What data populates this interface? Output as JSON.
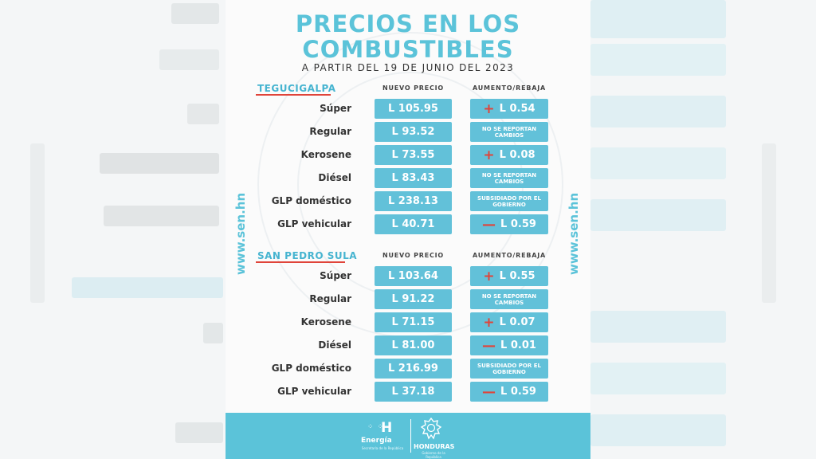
{
  "header": {
    "title_line1": "PRECIOS EN LOS",
    "title_line2": "COMBUSTIBLES",
    "subtitle": "A PARTIR DEL 19 DE JUNIO DEL 2023"
  },
  "side_url": "www.sen.hn",
  "columns": {
    "price": "NUEVO PRECIO",
    "change": "AUMENTO/REBAJA"
  },
  "sections": [
    {
      "city": "TEGUCIGALPA",
      "rows": [
        {
          "fuel": "Súper",
          "price": "L 105.95",
          "change_sign": "+",
          "change": "L 0.54"
        },
        {
          "fuel": "Regular",
          "price": "L 93.52",
          "change_sign": "",
          "change": "NO SE REPORTAN CAMBIOS"
        },
        {
          "fuel": "Kerosene",
          "price": "L 73.55",
          "change_sign": "+",
          "change": "L 0.08"
        },
        {
          "fuel": "Diésel",
          "price": "L 83.43",
          "change_sign": "",
          "change": "NO SE REPORTAN CAMBIOS"
        },
        {
          "fuel": "GLP doméstico",
          "price": "L 238.13",
          "change_sign": "",
          "change": "SUBSIDIADO POR EL GOBIERNO"
        },
        {
          "fuel": "GLP vehicular",
          "price": "L 40.71",
          "change_sign": "—",
          "change": "L 0.59"
        }
      ]
    },
    {
      "city": "SAN PEDRO SULA",
      "rows": [
        {
          "fuel": "Súper",
          "price": "L 103.64",
          "change_sign": "+",
          "change": "L 0.55"
        },
        {
          "fuel": "Regular",
          "price": "L 91.22",
          "change_sign": "",
          "change": "NO SE REPORTAN CAMBIOS"
        },
        {
          "fuel": "Kerosene",
          "price": "L 71.15",
          "change_sign": "+",
          "change": "L 0.07"
        },
        {
          "fuel": "Diésel",
          "price": "L 81.00",
          "change_sign": "—",
          "change": "L 0.01"
        },
        {
          "fuel": "GLP doméstico",
          "price": "L 216.99",
          "change_sign": "",
          "change": "SUBSIDIADO POR EL GOBIERNO"
        },
        {
          "fuel": "GLP vehicular",
          "price": "L 37.18",
          "change_sign": "—",
          "change": "L 0.59"
        }
      ]
    }
  ],
  "footer": {
    "energia_mark": "H",
    "energia_label": "Energía",
    "energia_sub": "Secretaría de la República",
    "honduras_label": "HONDURAS",
    "honduras_sub": "Gobierno de la República"
  },
  "colors": {
    "accent": "#5bc3d9",
    "cell": "#62c1d9",
    "increase": "#e0443a",
    "city": "#46b4d0"
  }
}
